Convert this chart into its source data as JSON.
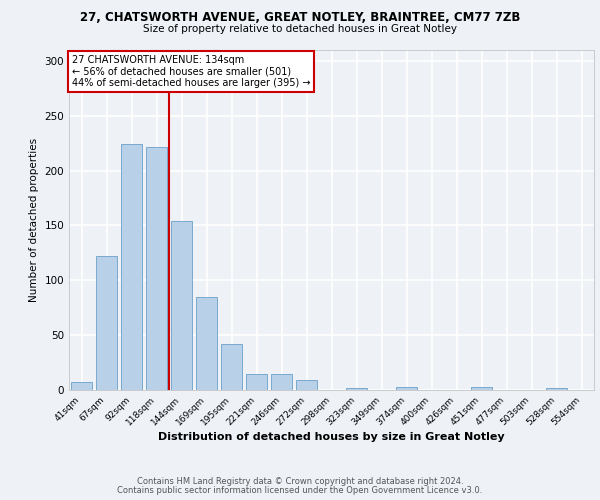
{
  "title": "27, CHATSWORTH AVENUE, GREAT NOTLEY, BRAINTREE, CM77 7ZB",
  "subtitle": "Size of property relative to detached houses in Great Notley",
  "xlabel": "Distribution of detached houses by size in Great Notley",
  "ylabel": "Number of detached properties",
  "footnote1": "Contains HM Land Registry data © Crown copyright and database right 2024.",
  "footnote2": "Contains public sector information licensed under the Open Government Licence v3.0.",
  "bar_labels": [
    "41sqm",
    "67sqm",
    "92sqm",
    "118sqm",
    "144sqm",
    "169sqm",
    "195sqm",
    "221sqm",
    "246sqm",
    "272sqm",
    "298sqm",
    "323sqm",
    "349sqm",
    "374sqm",
    "400sqm",
    "426sqm",
    "451sqm",
    "477sqm",
    "503sqm",
    "528sqm",
    "554sqm"
  ],
  "bar_values": [
    7,
    122,
    224,
    222,
    154,
    85,
    42,
    15,
    15,
    9,
    0,
    2,
    0,
    3,
    0,
    0,
    3,
    0,
    0,
    2,
    0
  ],
  "bar_color": "#b8d0e8",
  "bar_edge_color": "#6aa0c8",
  "bg_color": "#eef2f7",
  "grid_color": "#ffffff",
  "property_label": "27 CHATSWORTH AVENUE: 134sqm",
  "annotation_line1": "← 56% of detached houses are smaller (501)",
  "annotation_line2": "44% of semi-detached houses are larger (395) →",
  "vline_x_index": 3.5,
  "annotation_box_color": "#ffffff",
  "annotation_border_color": "#cc0000",
  "vline_color": "#cc0000",
  "ylim": [
    0,
    310
  ],
  "yticks": [
    0,
    50,
    100,
    150,
    200,
    250,
    300
  ]
}
